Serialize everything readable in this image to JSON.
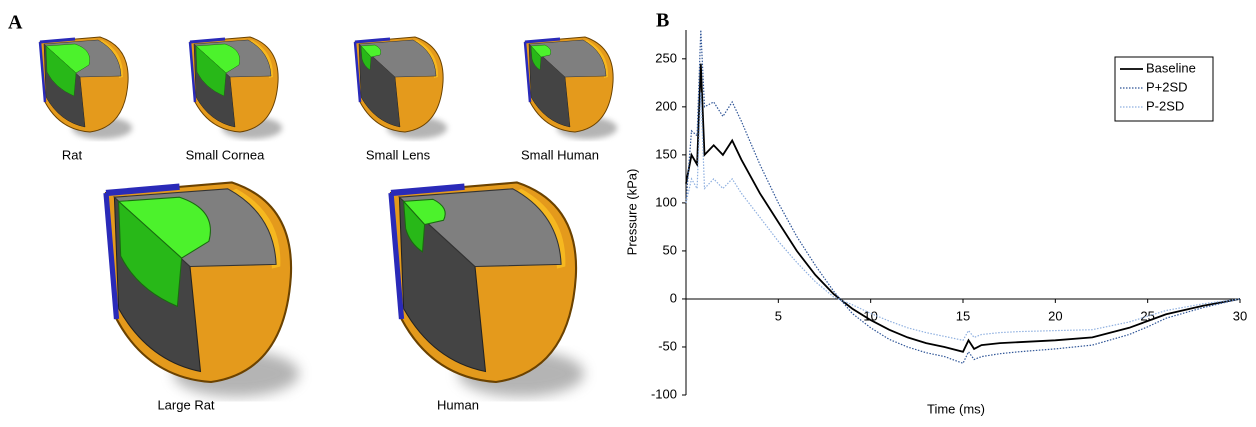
{
  "panel_labels": [
    "A",
    "B"
  ],
  "models": [
    "Rat",
    "Small Cornea",
    "Small Lens",
    "Small Human",
    "Large Rat",
    "Human"
  ],
  "chart_data": {
    "type": "line",
    "xlabel": "Time (ms)",
    "ylabel": "Pressure (kPa)",
    "xlim": [
      0,
      30
    ],
    "xticks": [
      5,
      10,
      15,
      20,
      25,
      30
    ],
    "ylim": [
      -100,
      280
    ],
    "yticks": [
      -100,
      -50,
      0,
      50,
      100,
      150,
      200,
      250
    ],
    "legend": "top-right",
    "x": [
      0,
      0.3,
      0.6,
      0.8,
      1,
      1.5,
      2,
      2.5,
      3,
      4,
      5,
      6,
      7,
      8,
      9,
      10,
      11,
      12,
      13,
      14,
      15,
      15.3,
      15.6,
      16,
      17,
      18,
      20,
      22,
      24,
      25,
      26,
      28,
      30
    ],
    "series": [
      {
        "name": "Baseline",
        "color": "#000000",
        "dash": "solid",
        "values": [
          120,
          150,
          140,
          245,
          150,
          160,
          150,
          165,
          145,
          110,
          80,
          50,
          25,
          5,
          -10,
          -22,
          -32,
          -40,
          -46,
          -50,
          -55,
          -43,
          -52,
          -48,
          -46,
          -45,
          -43,
          -40,
          -30,
          -23,
          -16,
          -7,
          0
        ]
      },
      {
        "name": "P+2SD",
        "color": "#2f5597",
        "dash": "dotted",
        "values": [
          100,
          175,
          170,
          280,
          200,
          205,
          190,
          205,
          185,
          140,
          100,
          65,
          35,
          8,
          -15,
          -30,
          -42,
          -50,
          -56,
          -60,
          -67,
          -55,
          -63,
          -60,
          -57,
          -55,
          -52,
          -48,
          -37,
          -29,
          -20,
          -9,
          0
        ]
      },
      {
        "name": "P-2SD",
        "color": "#8fb0e0",
        "dash": "dotted",
        "values": [
          100,
          125,
          115,
          215,
          115,
          125,
          115,
          125,
          110,
          85,
          60,
          38,
          18,
          2,
          -6,
          -15,
          -23,
          -30,
          -35,
          -39,
          -43,
          -33,
          -40,
          -37,
          -35,
          -34,
          -33,
          -32,
          -24,
          -18,
          -12,
          -5,
          0
        ]
      }
    ]
  }
}
